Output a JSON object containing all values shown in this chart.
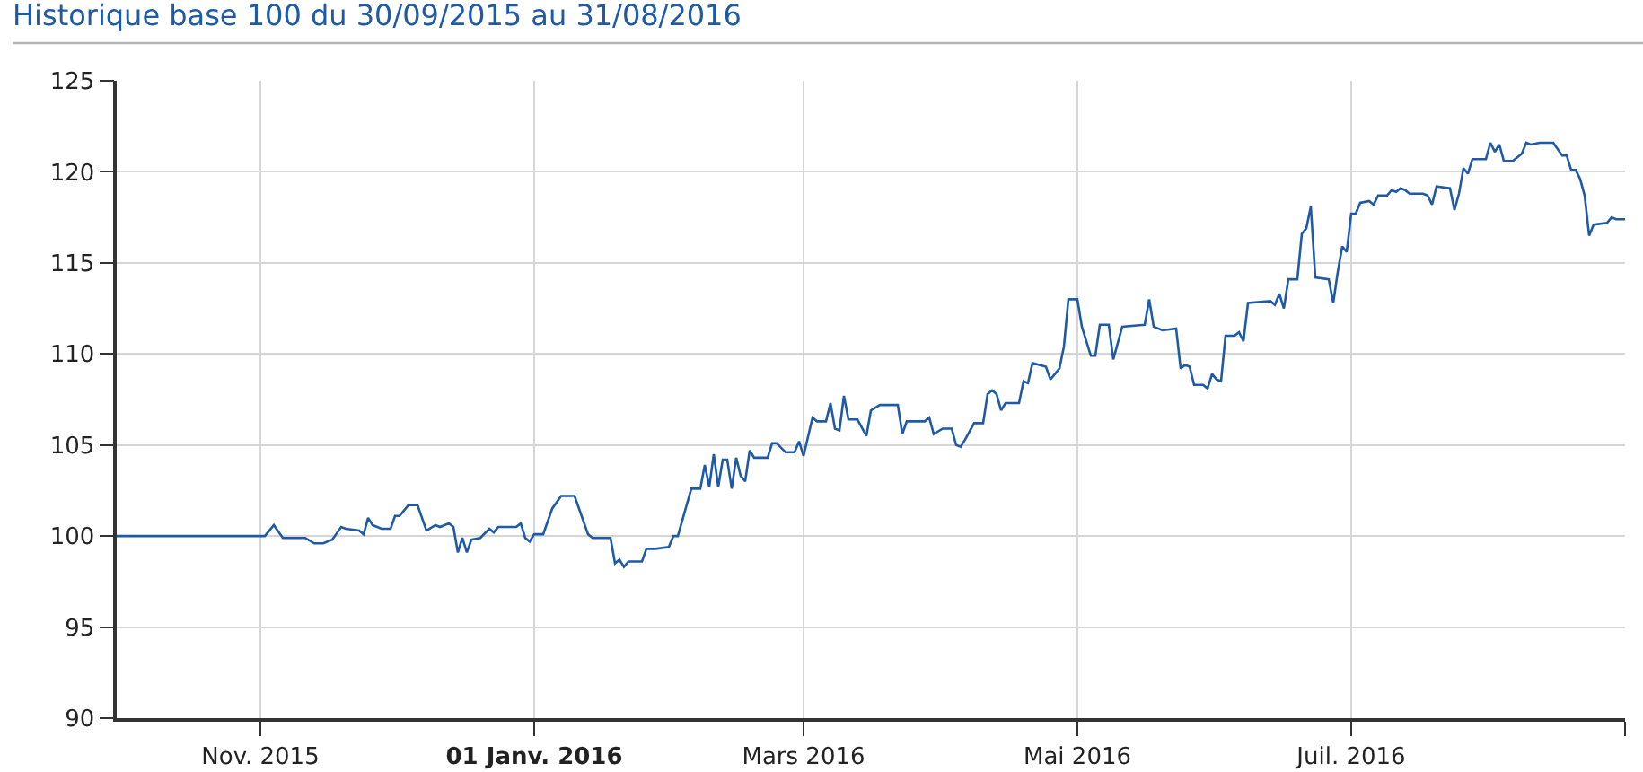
{
  "chart_data": {
    "type": "line",
    "title": "Historique base 100 du 30/09/2015 au 31/08/2016",
    "x": [
      "2015-09-30",
      "2015-11-02",
      "2015-11-04",
      "2015-11-06",
      "2015-11-11",
      "2015-11-13",
      "2015-11-15",
      "2015-11-17",
      "2015-11-19",
      "2015-11-20",
      "2015-11-23",
      "2015-11-24",
      "2015-11-25",
      "2015-11-26",
      "2015-11-28",
      "2015-11-30",
      "2015-12-01",
      "2015-12-02",
      "2015-12-04",
      "2015-12-06",
      "2015-12-08",
      "2015-12-10",
      "2015-12-11",
      "2015-12-13",
      "2015-12-14",
      "2015-12-15",
      "2015-12-16",
      "2015-12-17",
      "2015-12-18",
      "2015-12-20",
      "2015-12-22",
      "2015-12-23",
      "2015-12-24",
      "2015-12-28",
      "2015-12-29",
      "2015-12-30",
      "2015-12-31",
      "2016-01-01",
      "2016-01-03",
      "2016-01-05",
      "2016-01-07",
      "2016-01-10",
      "2016-01-13",
      "2016-01-14",
      "2016-01-18",
      "2016-01-19",
      "2016-01-20",
      "2016-01-21",
      "2016-01-22",
      "2016-01-25",
      "2016-01-26",
      "2016-01-28",
      "2016-01-31",
      "2016-02-01",
      "2016-02-02",
      "2016-02-05",
      "2016-02-07",
      "2016-02-08",
      "2016-02-09",
      "2016-02-10",
      "2016-02-11",
      "2016-02-12",
      "2016-02-13",
      "2016-02-14",
      "2016-02-15",
      "2016-02-16",
      "2016-02-17",
      "2016-02-18",
      "2016-02-19",
      "2016-02-22",
      "2016-02-23",
      "2016-02-24",
      "2016-02-26",
      "2016-02-28",
      "2016-02-29",
      "2016-03-01",
      "2016-03-03",
      "2016-03-04",
      "2016-03-06",
      "2016-03-07",
      "2016-03-08",
      "2016-03-09",
      "2016-03-10",
      "2016-03-11",
      "2016-03-13",
      "2016-03-15",
      "2016-03-16",
      "2016-03-18",
      "2016-03-22",
      "2016-03-23",
      "2016-03-24",
      "2016-03-28",
      "2016-03-29",
      "2016-03-30",
      "2016-04-01",
      "2016-04-03",
      "2016-04-04",
      "2016-04-05",
      "2016-04-06",
      "2016-04-08",
      "2016-04-10",
      "2016-04-11",
      "2016-04-12",
      "2016-04-13",
      "2016-04-14",
      "2016-04-15",
      "2016-04-18",
      "2016-04-19",
      "2016-04-20",
      "2016-04-21",
      "2016-04-24",
      "2016-04-25",
      "2016-04-26",
      "2016-04-27",
      "2016-04-28",
      "2016-04-29",
      "2016-05-01",
      "2016-05-02",
      "2016-05-04",
      "2016-05-05",
      "2016-05-06",
      "2016-05-08",
      "2016-05-09",
      "2016-05-11",
      "2016-05-16",
      "2016-05-17",
      "2016-05-18",
      "2016-05-20",
      "2016-05-23",
      "2016-05-24",
      "2016-05-25",
      "2016-05-26",
      "2016-05-27",
      "2016-05-29",
      "2016-05-30",
      "2016-05-31",
      "2016-06-01",
      "2016-06-02",
      "2016-06-03",
      "2016-06-05",
      "2016-06-06",
      "2016-06-07",
      "2016-06-08",
      "2016-06-13",
      "2016-06-14",
      "2016-06-15",
      "2016-06-16",
      "2016-06-17",
      "2016-06-19",
      "2016-06-20",
      "2016-06-21",
      "2016-06-22",
      "2016-06-23",
      "2016-06-26",
      "2016-06-27",
      "2016-06-28",
      "2016-06-29",
      "2016-06-30",
      "2016-07-01",
      "2016-07-02",
      "2016-07-03",
      "2016-07-05",
      "2016-07-06",
      "2016-07-07",
      "2016-07-09",
      "2016-07-10",
      "2016-07-11",
      "2016-07-12",
      "2016-07-13",
      "2016-07-14",
      "2016-07-17",
      "2016-07-18",
      "2016-07-19",
      "2016-07-20",
      "2016-07-23",
      "2016-07-24",
      "2016-07-25",
      "2016-07-26",
      "2016-07-27",
      "2016-07-28",
      "2016-07-31",
      "2016-08-01",
      "2016-08-02",
      "2016-08-03",
      "2016-08-04",
      "2016-08-06",
      "2016-08-08",
      "2016-08-09",
      "2016-08-10",
      "2016-08-12",
      "2016-08-15",
      "2016-08-17",
      "2016-08-18",
      "2016-08-19",
      "2016-08-20",
      "2016-08-21",
      "2016-08-22",
      "2016-08-23",
      "2016-08-24",
      "2016-08-27",
      "2016-08-28",
      "2016-08-29",
      "2016-08-31"
    ],
    "series": [
      {
        "color": "#1f5aa6",
        "values": [
          100,
          100,
          100.6,
          99.9,
          99.9,
          99.6,
          99.6,
          99.8,
          100.5,
          100.4,
          100.3,
          100.1,
          101.0,
          100.6,
          100.4,
          100.4,
          101.1,
          101.1,
          101.7,
          101.7,
          100.3,
          100.6,
          100.5,
          100.7,
          100.5,
          99.1,
          99.9,
          99.1,
          99.8,
          99.9,
          100.4,
          100.2,
          100.5,
          100.5,
          100.7,
          99.9,
          99.7,
          100.1,
          100.1,
          101.5,
          102.2,
          102.2,
          100.1,
          99.9,
          99.9,
          98.5,
          98.7,
          98.3,
          98.6,
          98.6,
          99.3,
          99.3,
          99.4,
          100.0,
          100.0,
          102.6,
          102.6,
          103.9,
          102.7,
          104.5,
          102.7,
          104.2,
          104.2,
          102.6,
          104.3,
          103.3,
          103.0,
          104.7,
          104.3,
          104.3,
          105.1,
          105.1,
          104.6,
          104.6,
          105.2,
          104.4,
          106.5,
          106.3,
          106.3,
          107.3,
          105.9,
          105.8,
          107.7,
          106.4,
          106.4,
          105.5,
          106.9,
          107.2,
          107.2,
          105.6,
          106.3,
          106.3,
          106.5,
          105.6,
          105.9,
          105.9,
          105.0,
          104.9,
          105.3,
          106.2,
          106.2,
          107.8,
          108.0,
          107.8,
          106.9,
          107.3,
          107.3,
          108.5,
          108.4,
          109.5,
          109.3,
          108.6,
          108.9,
          109.2,
          110.4,
          113.0,
          113.0,
          111.5,
          109.9,
          109.9,
          111.6,
          111.6,
          109.7,
          111.5,
          111.6,
          113.0,
          111.5,
          111.3,
          111.4,
          109.2,
          109.4,
          109.3,
          108.3,
          108.3,
          108.1,
          108.9,
          108.6,
          108.5,
          111.0,
          111.0,
          111.2,
          110.7,
          112.8,
          112.9,
          112.7,
          113.3,
          112.5,
          114.1,
          114.1,
          116.6,
          116.9,
          118.1,
          114.2,
          114.1,
          112.8,
          114.5,
          115.9,
          115.6,
          117.7,
          117.7,
          118.3,
          118.4,
          118.2,
          118.7,
          118.7,
          119.0,
          118.9,
          119.1,
          119.0,
          118.8,
          118.8,
          118.7,
          118.2,
          119.2,
          119.1,
          117.9,
          118.8,
          120.2,
          119.9,
          120.7,
          120.7,
          121.6,
          121.1,
          121.5,
          120.6,
          120.6,
          121.0,
          121.6,
          121.5,
          121.6,
          121.6,
          120.9,
          120.9,
          120.1,
          120.1,
          119.6,
          118.7,
          116.5,
          117.1,
          117.2,
          117.5,
          117.4,
          117.4
        ]
      }
    ],
    "xlim": [
      "2015-09-30",
      "2016-08-31"
    ],
    "xticks": [
      {
        "value": "2015-11-01",
        "label": "Nov. 2015"
      },
      {
        "value": "2016-01-01",
        "label": "01 Janv. 2016"
      },
      {
        "value": "2016-03-01",
        "label": "Mars 2016"
      },
      {
        "value": "2016-05-01",
        "label": "Mai 2016"
      },
      {
        "value": "2016-07-01",
        "label": "Juil. 2016"
      },
      {
        "value": "2016-08-31",
        "label": null
      }
    ],
    "ylim": [
      90,
      125
    ],
    "yticks": [
      90,
      95,
      100,
      105,
      110,
      115,
      120,
      125
    ],
    "grid": true
  }
}
